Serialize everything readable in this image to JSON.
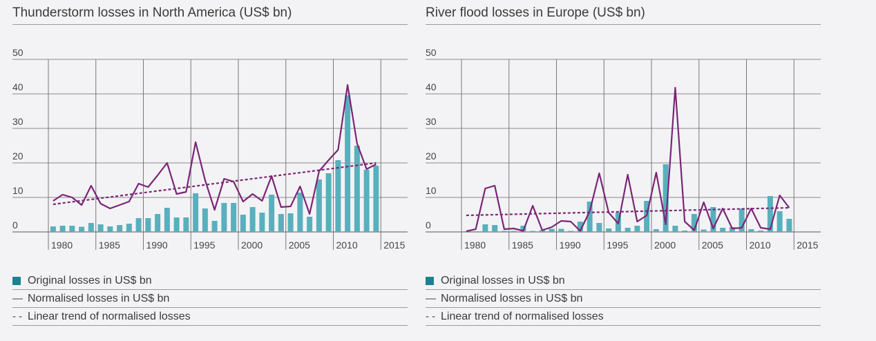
{
  "colors": {
    "bar": "#59b0bd",
    "line": "#7b2477",
    "trend": "#7b2477",
    "grid": "#6a6a6a",
    "swatch": "#1e8190"
  },
  "legend": {
    "original": "Original losses in US$ bn",
    "normalised": "Normalised losses in US$ bn",
    "trend": "Linear trend of normalised losses",
    "line_glyph": "—",
    "trend_glyph": "- -"
  },
  "chart_data": [
    {
      "type": "bar+line",
      "title": "Thunderstorm losses in North America (US$ bn)",
      "ylim": [
        0,
        50
      ],
      "yticks": [
        "0",
        "10",
        "20",
        "30",
        "40",
        "50"
      ],
      "xticks": [
        "1980",
        "1985",
        "1990",
        "1995",
        "2000",
        "2005",
        "2010",
        "2015"
      ],
      "years": [
        1980,
        1981,
        1982,
        1983,
        1984,
        1985,
        1986,
        1987,
        1988,
        1989,
        1990,
        1991,
        1992,
        1993,
        1994,
        1995,
        1996,
        1997,
        1998,
        1999,
        2000,
        2001,
        2002,
        2003,
        2004,
        2005,
        2006,
        2007,
        2008,
        2009,
        2010,
        2011,
        2012,
        2013,
        2014
      ],
      "series": [
        {
          "name": "Original losses in US$ bn",
          "kind": "bar",
          "values": [
            1.6,
            1.8,
            1.8,
            1.5,
            2.6,
            2.2,
            1.6,
            2.0,
            2.4,
            4.0,
            4.0,
            5.2,
            7.0,
            4.2,
            4.2,
            11.2,
            6.8,
            3.2,
            8.4,
            8.4,
            5.0,
            7.2,
            5.6,
            10.8,
            5.2,
            5.4,
            11.4,
            4.4,
            15.2,
            17.0,
            20.8,
            39.6,
            25.0,
            18.0,
            19.2
          ]
        },
        {
          "name": "Normalised losses in US$ bn",
          "kind": "line",
          "values": [
            9.0,
            10.8,
            10.0,
            7.8,
            13.4,
            8.2,
            6.8,
            7.8,
            8.8,
            14.0,
            13.0,
            16.4,
            20.0,
            11.0,
            11.6,
            26.0,
            15.0,
            6.4,
            15.4,
            14.6,
            8.8,
            11.0,
            9.0,
            16.2,
            7.2,
            7.4,
            13.2,
            5.2,
            17.6,
            20.8,
            23.8,
            42.6,
            25.6,
            18.2,
            19.6
          ]
        },
        {
          "name": "Linear trend of normalised losses",
          "kind": "trend",
          "start": [
            1980,
            8.0
          ],
          "end": [
            2014,
            20.0
          ]
        }
      ]
    },
    {
      "type": "bar+line",
      "title": "River flood losses in Europe (US$ bn)",
      "ylim": [
        0,
        50
      ],
      "yticks": [
        "0",
        "10",
        "20",
        "30",
        "40",
        "50"
      ],
      "xticks": [
        "1980",
        "1985",
        "1990",
        "1995",
        "2000",
        "2005",
        "2010",
        "2015"
      ],
      "years": [
        1980,
        1981,
        1982,
        1983,
        1984,
        1985,
        1986,
        1987,
        1988,
        1989,
        1990,
        1991,
        1992,
        1993,
        1994,
        1995,
        1996,
        1997,
        1998,
        1999,
        2000,
        2001,
        2002,
        2003,
        2004,
        2005,
        2006,
        2007,
        2008,
        2009,
        2010,
        2011,
        2012,
        2013,
        2014
      ],
      "series": [
        {
          "name": "Original losses in US$ bn",
          "kind": "bar",
          "values": [
            0.2,
            0.2,
            2.2,
            2.0,
            0.3,
            0.3,
            1.8,
            0.3,
            0.5,
            0.9,
            0.9,
            0.3,
            3.0,
            8.8,
            2.6,
            1.0,
            5.6,
            1.2,
            1.8,
            9.0,
            0.8,
            19.6,
            1.8,
            0.4,
            5.2,
            0.7,
            7.2,
            1.2,
            1.4,
            6.8,
            0.8,
            0.4,
            10.4,
            6.0,
            3.8
          ]
        },
        {
          "name": "Normalised losses in US$ bn",
          "kind": "line",
          "values": [
            0.2,
            0.8,
            12.6,
            13.4,
            0.8,
            1.0,
            0.3,
            7.6,
            0.5,
            1.4,
            3.2,
            3.0,
            0.3,
            6.0,
            17.0,
            5.6,
            2.4,
            16.6,
            3.0,
            4.8,
            17.2,
            2.2,
            41.8,
            3.0,
            0.5,
            8.6,
            1.0,
            6.8,
            1.0,
            1.2,
            6.8,
            1.2,
            0.8,
            10.6,
            7.0
          ]
        },
        {
          "name": "Linear trend of normalised losses",
          "kind": "trend",
          "start": [
            1980,
            4.8
          ],
          "end": [
            2014,
            7.0
          ]
        }
      ]
    }
  ]
}
